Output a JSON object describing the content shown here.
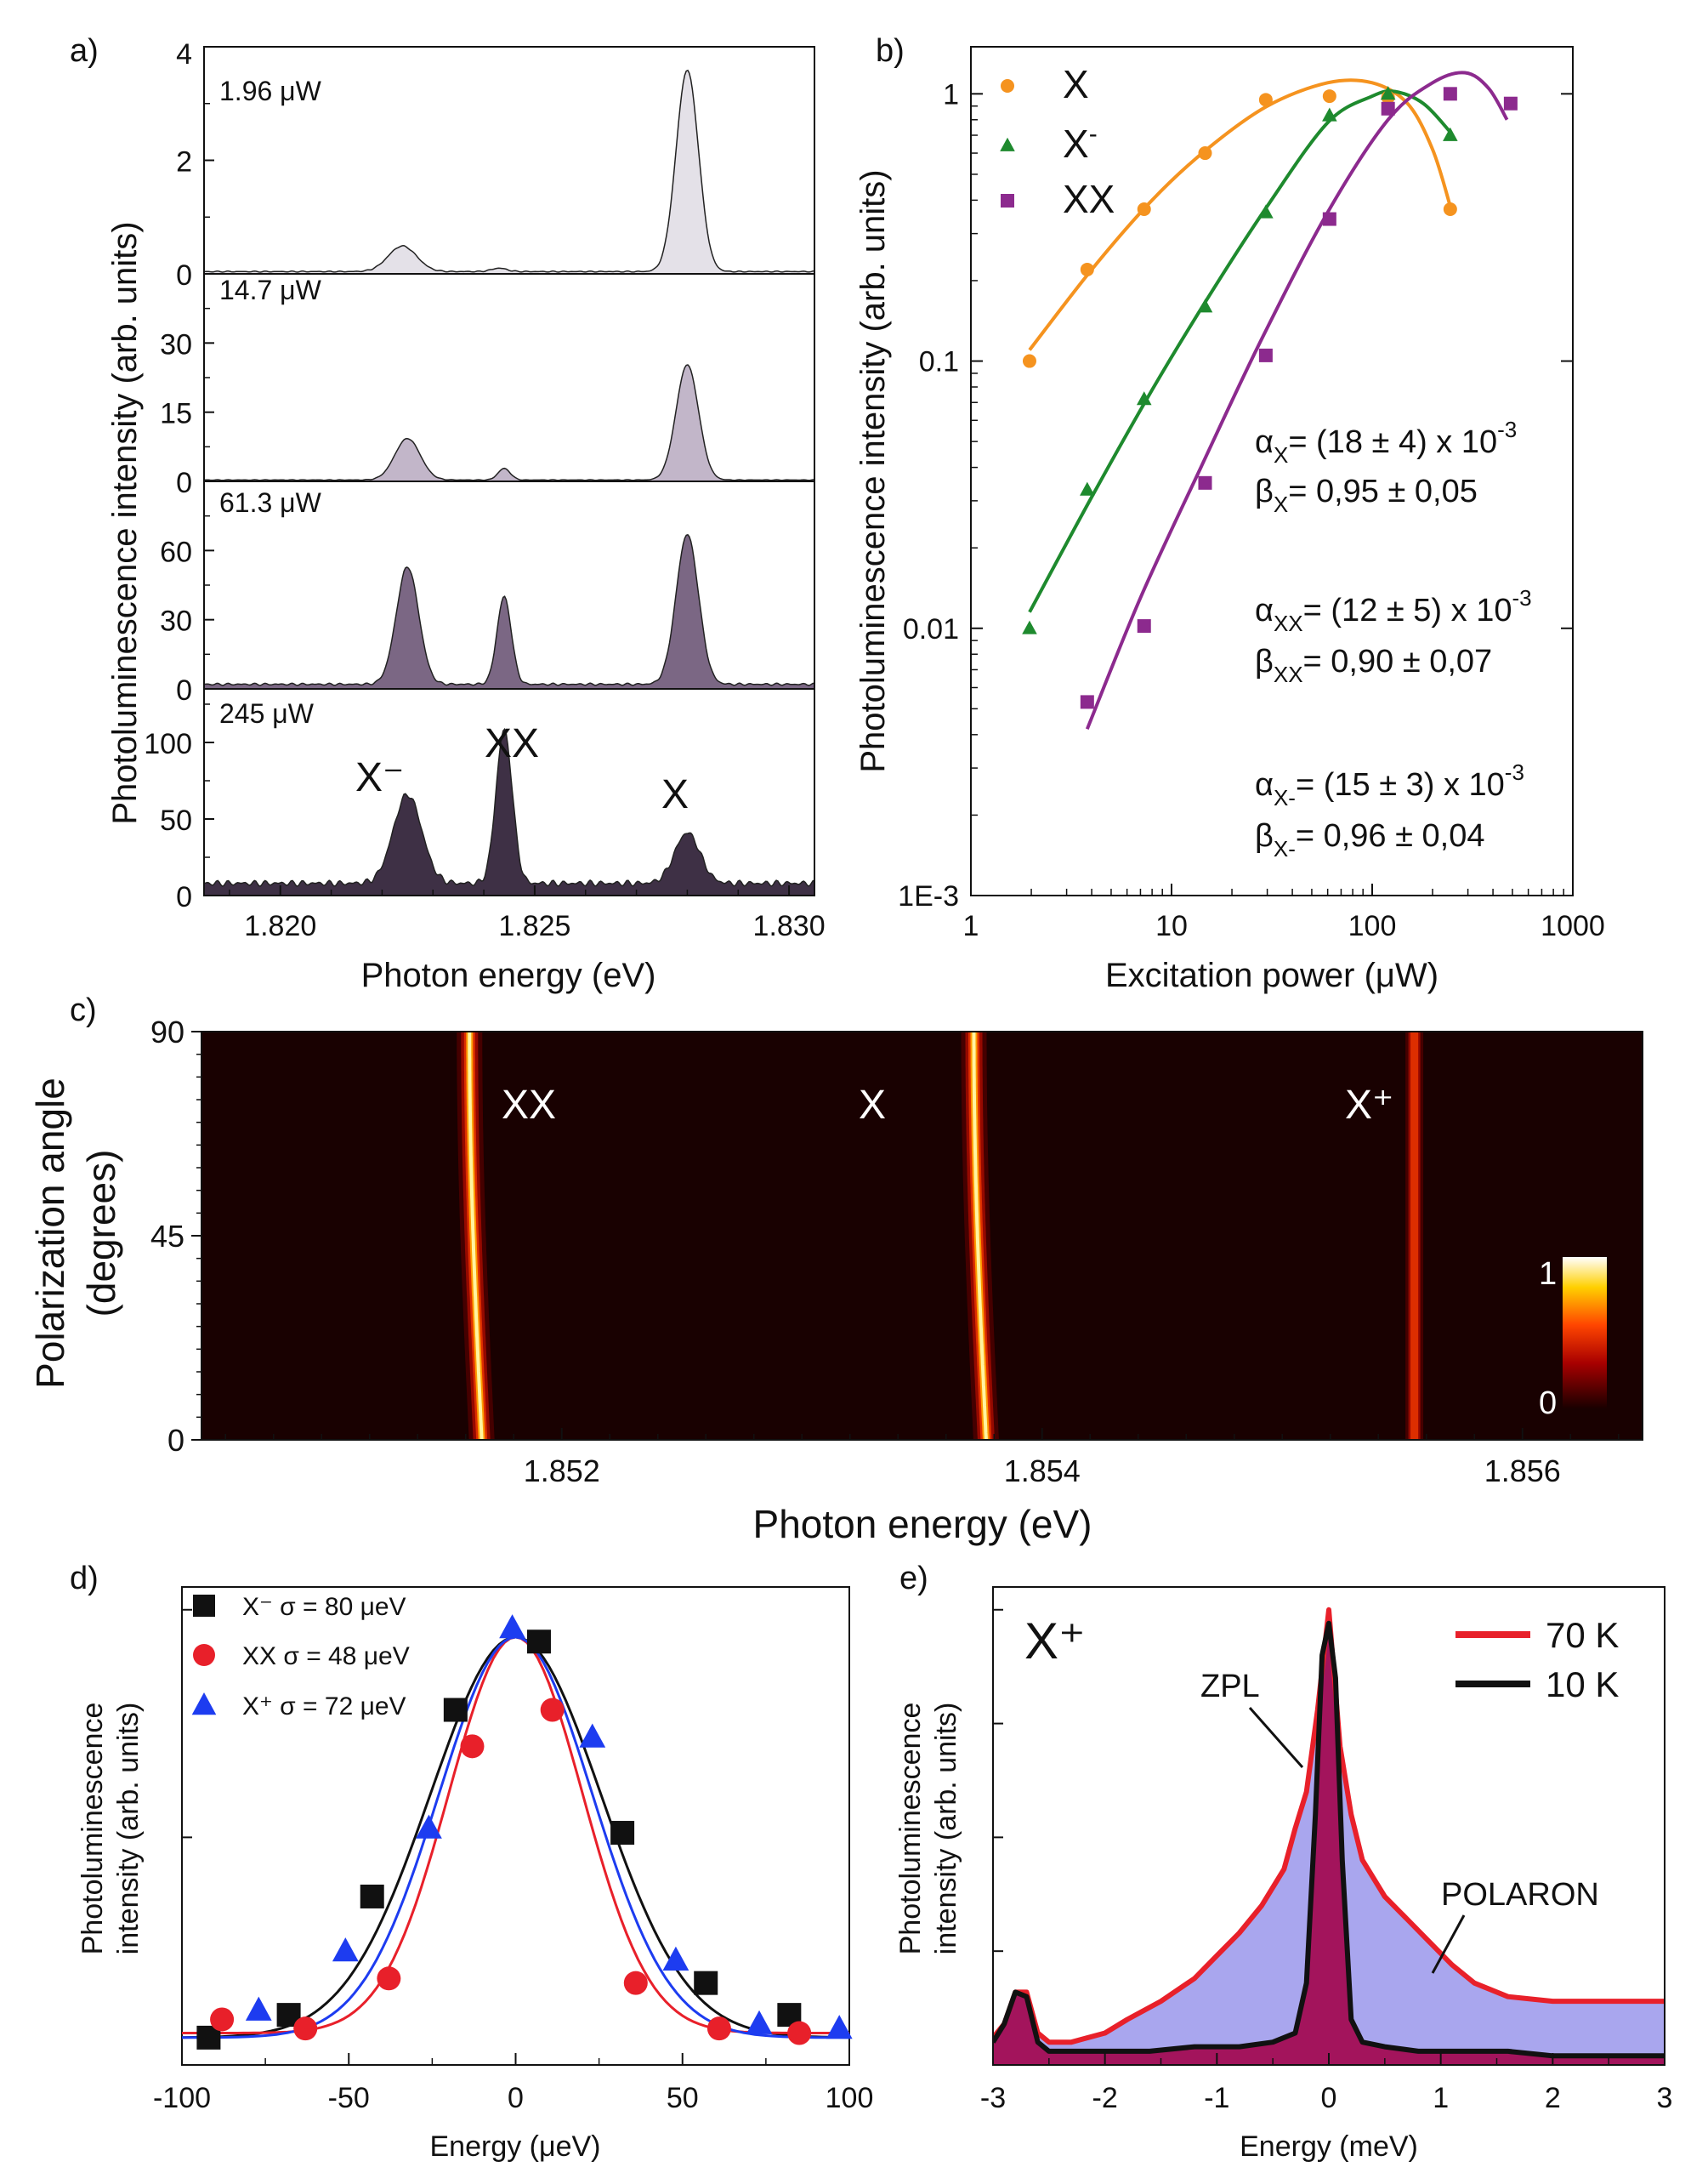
{
  "chart_data": [
    {
      "panel": "a)",
      "type": "area",
      "xlabel": "Photon energy (eV)",
      "ylabel": "Photoluminescence intensity (arb. units)",
      "xlim": [
        1.8185,
        1.8305
      ],
      "xticks": [
        "1.820",
        "1.825",
        "1.830"
      ],
      "xtick_values": [
        1.82,
        1.825,
        1.83
      ],
      "subpanels": [
        {
          "label": "1.96 μW",
          "ylim": [
            0,
            4
          ],
          "yticks": [
            0,
            2,
            4
          ],
          "color": "#e4e1e8",
          "peaks": [
            {
              "x": 1.8224,
              "y": 0.45,
              "w": 0.00028
            },
            {
              "x": 1.8243,
              "y": 0.06,
              "w": 0.00015
            },
            {
              "x": 1.828,
              "y": 3.55,
              "w": 0.00022
            }
          ],
          "base": 0.04
        },
        {
          "label": "14.7 μW",
          "ylim": [
            0,
            45
          ],
          "yticks": [
            0,
            15,
            30
          ],
          "color": "#c2b6c9",
          "peaks": [
            {
              "x": 1.8225,
              "y": 9,
              "w": 0.00025
            },
            {
              "x": 1.8244,
              "y": 2.5,
              "w": 0.00012
            },
            {
              "x": 1.828,
              "y": 25,
              "w": 0.00022
            }
          ],
          "base": 0.3
        },
        {
          "label": "61.3 μW",
          "ylim": [
            0,
            90
          ],
          "yticks": [
            0,
            30,
            60
          ],
          "color": "#7b6784",
          "peaks": [
            {
              "x": 1.8225,
              "y": 51,
              "w": 0.00022
            },
            {
              "x": 1.8244,
              "y": 38,
              "w": 0.00014
            },
            {
              "x": 1.828,
              "y": 65,
              "w": 0.00022
            }
          ],
          "base": 2
        },
        {
          "label": "245 μW",
          "ylim": [
            0,
            135
          ],
          "yticks": [
            0,
            50,
            100
          ],
          "color": "#3e3045",
          "peaks": [
            {
              "x": 1.8225,
              "y": 58,
              "w": 0.00028
            },
            {
              "x": 1.8244,
              "y": 100,
              "w": 0.00016
            },
            {
              "x": 1.828,
              "y": 33,
              "w": 0.00025
            }
          ],
          "base": 8,
          "annotations": [
            "X⁻",
            "XX",
            "X"
          ]
        }
      ]
    },
    {
      "panel": "b)",
      "type": "scatter",
      "xscale": "log",
      "yscale": "log",
      "xlabel": "Excitation power (μW)",
      "ylabel": "Photoluminescence intensity (arb. units)",
      "xlim": [
        1,
        1000
      ],
      "ylim": [
        0.001,
        1.5
      ],
      "xticks": [
        "1",
        "10",
        "100",
        "1000"
      ],
      "yticks": [
        "1E-3",
        "0.01",
        "0.1",
        "1"
      ],
      "series": [
        {
          "name": "X",
          "marker": "circle",
          "color": "#f5931f",
          "x": [
            1.96,
            3.8,
            7.3,
            14.7,
            29.5,
            61.3,
            120,
            245
          ],
          "y": [
            0.1,
            0.22,
            0.37,
            0.6,
            0.95,
            0.98,
            0.97,
            0.37
          ],
          "fit_x": [
            1.96,
            4,
            8,
            15,
            30,
            60,
            100,
            150,
            200,
            245
          ],
          "fit_y": [
            0.11,
            0.22,
            0.4,
            0.62,
            0.9,
            1.1,
            1.1,
            0.92,
            0.62,
            0.38
          ]
        },
        {
          "name": "X⁻",
          "marker": "triangle",
          "color": "#1e8a2e",
          "x": [
            1.96,
            3.8,
            7.3,
            14.7,
            29.5,
            61.3,
            120,
            245
          ],
          "y": [
            0.01,
            0.033,
            0.072,
            0.16,
            0.36,
            0.83,
            1.0,
            0.7
          ],
          "fit_x": [
            1.96,
            4,
            8,
            15,
            30,
            60,
            100,
            130,
            180,
            245
          ],
          "fit_y": [
            0.0115,
            0.031,
            0.078,
            0.17,
            0.38,
            0.78,
            0.98,
            1.02,
            0.92,
            0.72
          ]
        },
        {
          "name": "XX",
          "marker": "square",
          "color": "#8c2a8e",
          "x": [
            3.8,
            7.3,
            14.7,
            29.5,
            61.3,
            120,
            245,
            490
          ],
          "y": [
            0.0053,
            0.0102,
            0.035,
            0.105,
            0.34,
            0.88,
            1.0,
            0.92
          ],
          "fit_x": [
            3.8,
            7,
            14,
            28,
            60,
            120,
            200,
            290,
            380,
            470
          ],
          "fit_y": [
            0.0042,
            0.013,
            0.04,
            0.12,
            0.36,
            0.8,
            1.1,
            1.2,
            1.05,
            0.8
          ]
        }
      ],
      "annotations": [
        {
          "main": "α",
          "sub": "X",
          "text": "= (18 ± 4) x 10",
          "sup": "-3"
        },
        {
          "main": "β",
          "sub": "X",
          "text": "= 0,95 ± 0,05"
        },
        {
          "main": "α",
          "sub": "XX",
          "text": "= (12 ± 5) x 10",
          "sup": "-3"
        },
        {
          "main": "β",
          "sub": "XX",
          "text": "= 0,90 ± 0,07"
        },
        {
          "main": "α",
          "sub": "X-",
          "text": "= (15 ± 3) x 10",
          "sup": "-3"
        },
        {
          "main": "β",
          "sub": "X-",
          "text": "= 0,96 ± 0,04"
        }
      ]
    },
    {
      "panel": "c)",
      "type": "heatmap",
      "xlabel": "Photon energy (eV)",
      "ylabel_line1": "Polarization angle",
      "ylabel_line2": "(degrees)",
      "xlim": [
        1.8505,
        1.8565
      ],
      "ylim": [
        0,
        90
      ],
      "xticks": [
        "1.852",
        "1.854",
        "1.856"
      ],
      "xtick_values": [
        1.852,
        1.854,
        1.856
      ],
      "yticks": [
        "0",
        "45",
        "90"
      ],
      "ytick_values": [
        0,
        45,
        90
      ],
      "colorbar": {
        "min": "0",
        "max": "1"
      },
      "lines": [
        {
          "name": "XX",
          "label": "XX",
          "center": 1.85165,
          "amplitude": 48,
          "period_deg": 180,
          "peak_intensity": 1.0
        },
        {
          "name": "X",
          "label": "X",
          "center": 1.85375,
          "amplitude": 48,
          "period_deg": 180,
          "peak_intensity": 1.0
        },
        {
          "name": "X+",
          "label": "X⁺",
          "center": 1.85555,
          "amplitude": 0,
          "period_deg": 180,
          "peak_intensity": 0.55
        }
      ]
    },
    {
      "panel": "d)",
      "type": "scatter",
      "xlabel": "Energy (μeV)",
      "ylabel_line1": "Photoluminescence",
      "ylabel_line2": "intensity (arb. units)",
      "xlim": [
        -100,
        100
      ],
      "ylim": [
        0,
        1.05
      ],
      "xticks": [
        "-100",
        "-50",
        "0",
        "50",
        "100"
      ],
      "xtick_values": [
        -100,
        -50,
        0,
        50,
        100
      ],
      "series": [
        {
          "name": "X⁻",
          "label": "X⁻   σ = 80 μeV",
          "marker": "square",
          "color": "#111111",
          "sigma": 80,
          "offset": 0.06,
          "x": [
            -92,
            -68,
            -43,
            -18,
            7,
            32,
            57,
            82
          ],
          "y": [
            0.06,
            0.11,
            0.37,
            0.78,
            0.93,
            0.51,
            0.18,
            0.11
          ]
        },
        {
          "name": "XX",
          "label": "XX  σ = 48 μeV",
          "marker": "circle",
          "color": "#e8202a",
          "sigma": 48,
          "offset": 0.07,
          "x": [
            -88,
            -63,
            -38,
            -13,
            11,
            36,
            61,
            85
          ],
          "y": [
            0.1,
            0.08,
            0.19,
            0.7,
            0.78,
            0.18,
            0.08,
            0.07
          ],
          "fit_width": 20
        },
        {
          "name": "X⁺",
          "label": "X⁺   σ = 72 μeV",
          "marker": "triangle",
          "color": "#1d3cf0",
          "sigma": 72,
          "offset": 0.06,
          "x": [
            -77,
            -51,
            -26,
            -1,
            23,
            48,
            73,
            97
          ],
          "y": [
            0.12,
            0.25,
            0.52,
            0.96,
            0.72,
            0.23,
            0.09,
            0.08
          ]
        }
      ]
    },
    {
      "panel": "e)",
      "type": "area",
      "title": "X⁺",
      "xlabel": "Energy (meV)",
      "ylabel_line1": "Photoluminescence",
      "ylabel_line2": "intensity (arb. units)",
      "xlim": [
        -3,
        3
      ],
      "ylim": [
        0,
        1.05
      ],
      "xticks": [
        "-3",
        "-2",
        "-1",
        "0",
        "1",
        "2",
        "3"
      ],
      "xtick_values": [
        -3,
        -2,
        -1,
        0,
        1,
        2,
        3
      ],
      "series": [
        {
          "name": "70 K",
          "color": "#e8202a",
          "fill": "#a9a6ee",
          "x": [
            -3,
            -2.9,
            -2.8,
            -2.7,
            -2.6,
            -2.5,
            -2.3,
            -2.0,
            -1.8,
            -1.5,
            -1.2,
            -1.0,
            -0.8,
            -0.6,
            -0.4,
            -0.3,
            -0.2,
            -0.1,
            0,
            0.1,
            0.2,
            0.3,
            0.5,
            0.7,
            0.9,
            1.1,
            1.3,
            1.6,
            2.0,
            2.4,
            2.8,
            3.0
          ],
          "y": [
            0.06,
            0.09,
            0.16,
            0.16,
            0.07,
            0.05,
            0.05,
            0.07,
            0.1,
            0.14,
            0.19,
            0.24,
            0.29,
            0.35,
            0.43,
            0.52,
            0.6,
            0.78,
            1.0,
            0.7,
            0.55,
            0.45,
            0.37,
            0.32,
            0.27,
            0.22,
            0.18,
            0.15,
            0.14,
            0.14,
            0.14,
            0.14
          ]
        },
        {
          "name": "10 K",
          "color": "#111111",
          "fill": "#a3145c",
          "x": [
            -3,
            -2.9,
            -2.8,
            -2.7,
            -2.6,
            -2.5,
            -2.3,
            -2.0,
            -1.6,
            -1.2,
            -0.8,
            -0.5,
            -0.3,
            -0.2,
            -0.12,
            -0.06,
            0,
            0.06,
            0.12,
            0.2,
            0.3,
            0.5,
            0.8,
            1.2,
            1.6,
            2.0,
            2.5,
            3.0
          ],
          "y": [
            0.05,
            0.09,
            0.16,
            0.15,
            0.05,
            0.03,
            0.03,
            0.03,
            0.03,
            0.04,
            0.04,
            0.05,
            0.07,
            0.18,
            0.55,
            0.9,
            0.97,
            0.85,
            0.45,
            0.1,
            0.05,
            0.04,
            0.03,
            0.03,
            0.03,
            0.02,
            0.02,
            0.02
          ]
        }
      ],
      "annotations": [
        "ZPL",
        "POLARON"
      ]
    }
  ],
  "panel_labels": {
    "a": "a)",
    "b": "b)",
    "c": "c)",
    "d": "d)",
    "e": "e)"
  }
}
